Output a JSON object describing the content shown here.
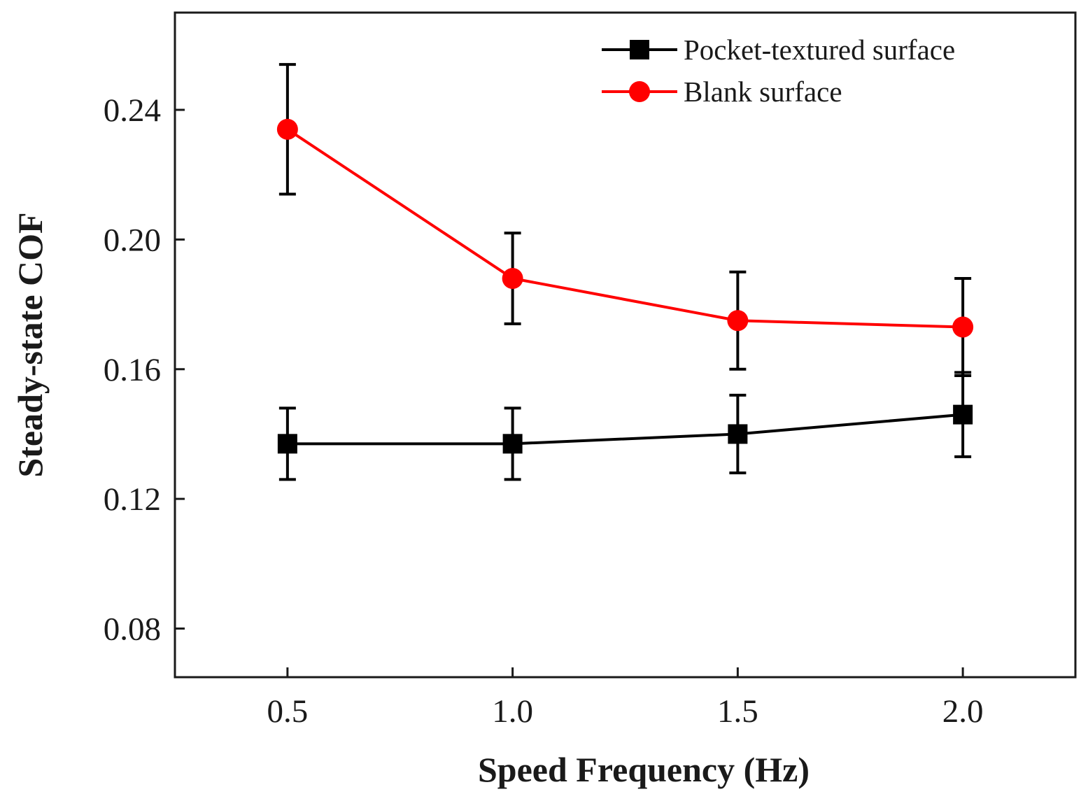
{
  "chart_data": {
    "type": "line",
    "xlabel": "Speed Frequency (Hz)",
    "ylabel": "Steady-state COF",
    "xlim": [
      0.25,
      2.25
    ],
    "ylim": [
      0.065,
      0.27
    ],
    "x": [
      0.5,
      1.0,
      1.5,
      2.0
    ],
    "xticks": [
      "0.5",
      "1.0",
      "1.5",
      "2.0"
    ],
    "yticks": [
      "0.08",
      "0.12",
      "0.16",
      "0.20",
      "0.24"
    ],
    "grid": false,
    "legend_position": "top-right",
    "series": [
      {
        "name": "Pocket-textured surface",
        "color": "#000000",
        "marker": "square",
        "values": [
          0.137,
          0.137,
          0.14,
          0.146
        ],
        "errors": [
          0.011,
          0.011,
          0.012,
          0.013
        ]
      },
      {
        "name": "Blank surface",
        "color": "#ff0000",
        "marker": "circle",
        "values": [
          0.234,
          0.188,
          0.175,
          0.173
        ],
        "errors": [
          0.02,
          0.014,
          0.015,
          0.015
        ]
      }
    ]
  }
}
